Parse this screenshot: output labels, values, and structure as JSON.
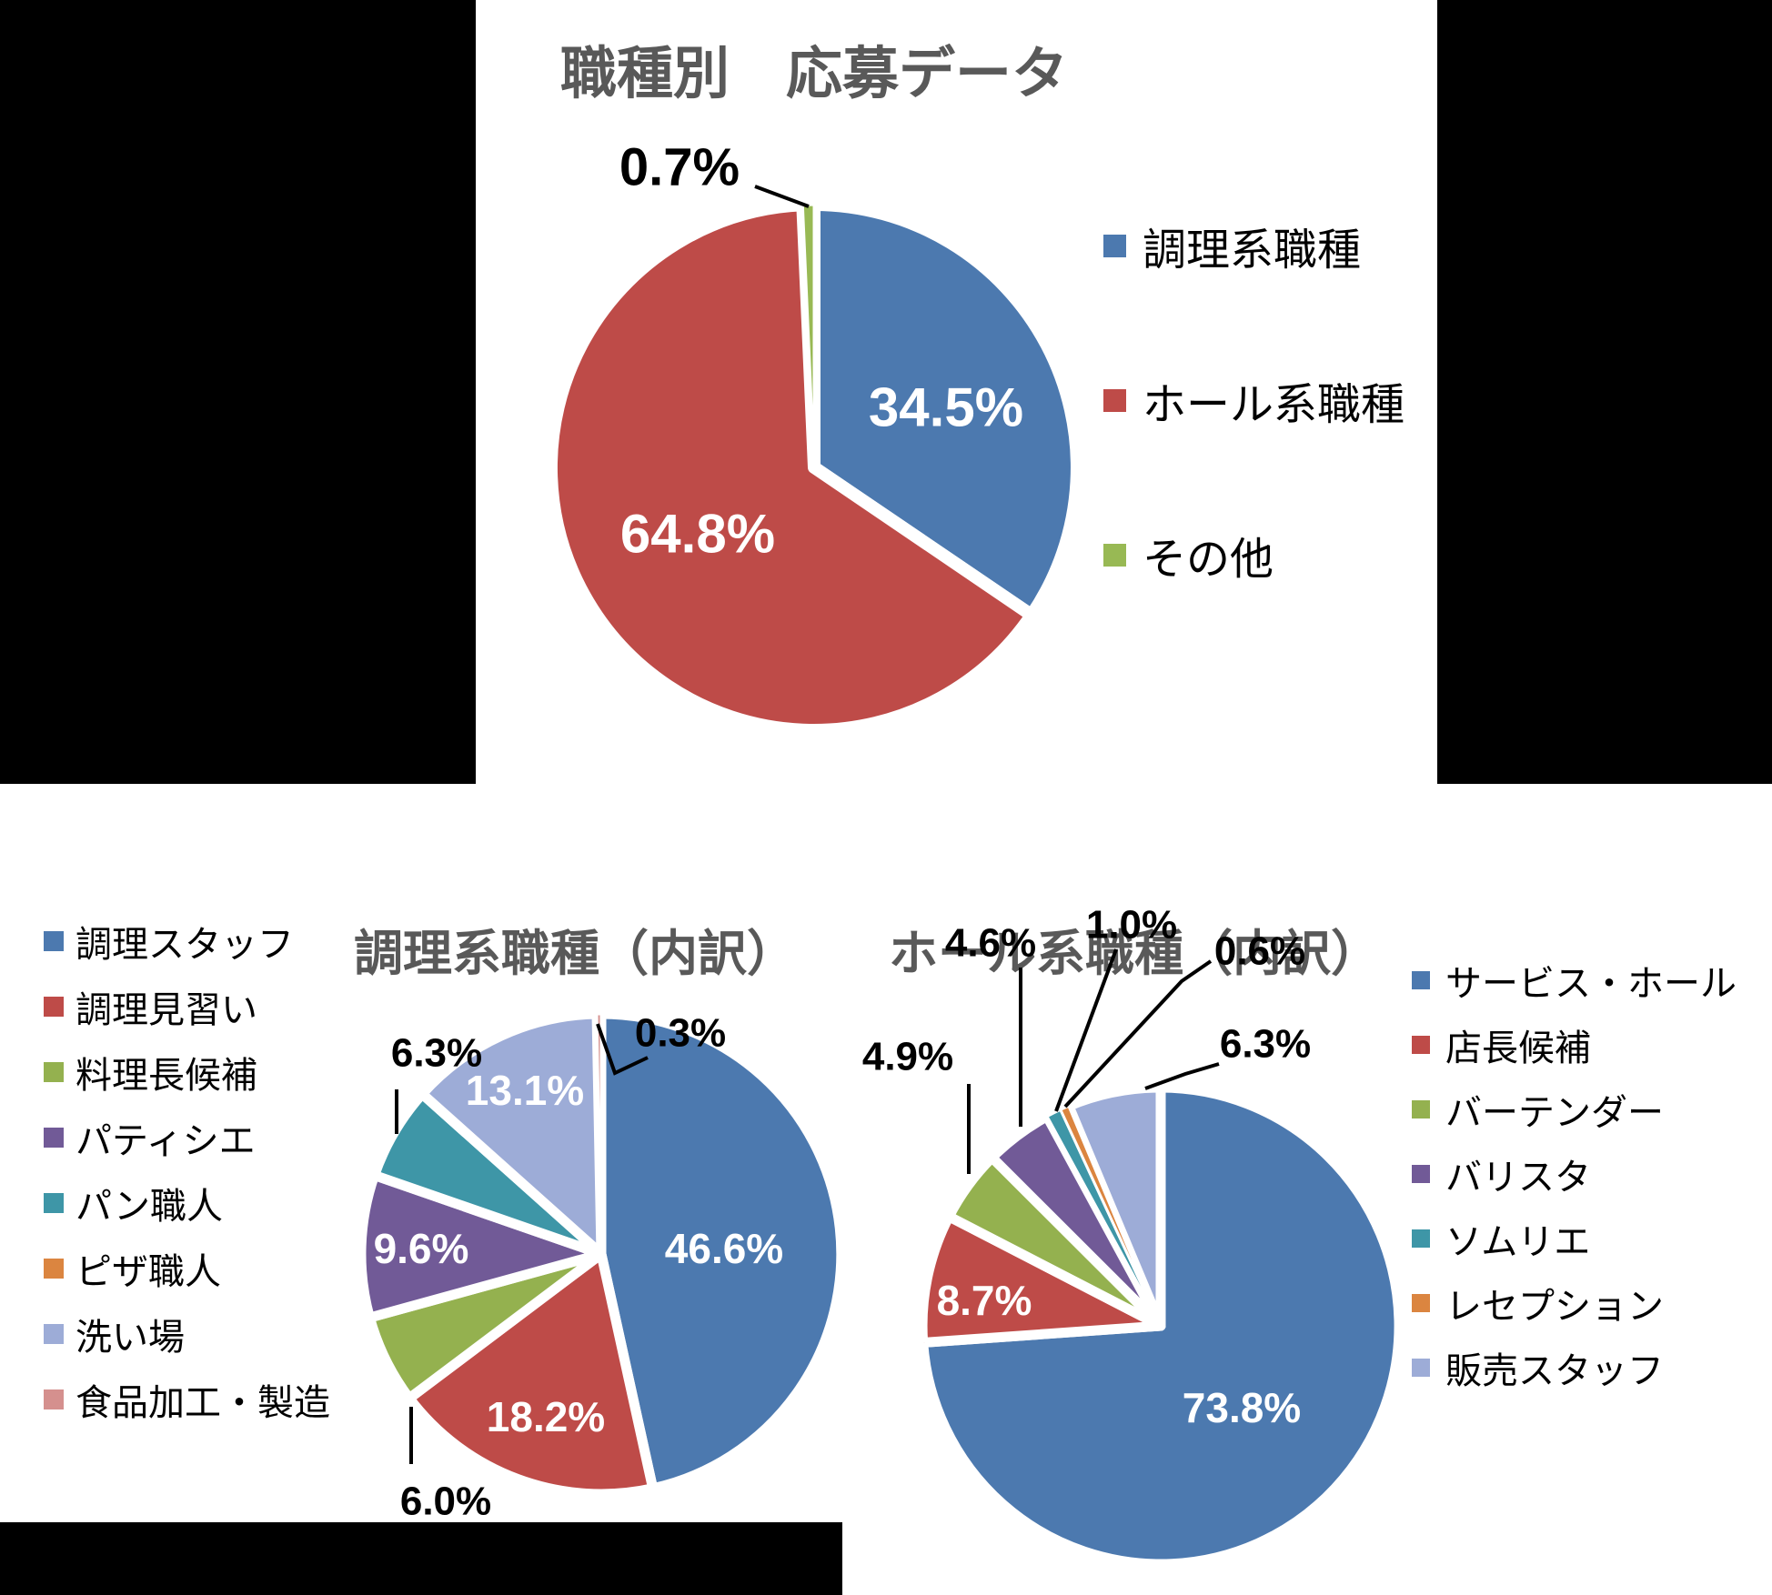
{
  "page": {
    "background_color": "#ffffff",
    "mask_color": "#000000",
    "title_color": "#595959",
    "label_black": "#000000",
    "label_white": "#ffffff"
  },
  "chart_data": [
    {
      "id": "overall",
      "type": "pie",
      "title": "職種別　応募データ",
      "legend_position": "right",
      "slices": [
        {
          "label": "調理系職種",
          "value": 34.5,
          "pct_label": "34.5%",
          "color": "#4C79AF"
        },
        {
          "label": "ホール系職種",
          "value": 64.8,
          "pct_label": "64.8%",
          "color": "#BE4B48"
        },
        {
          "label": "その他",
          "value": 0.7,
          "pct_label": "0.7%",
          "color": "#98B954"
        }
      ]
    },
    {
      "id": "cooking",
      "type": "pie",
      "title": "調理系職種（内訳）",
      "legend_position": "left",
      "slices": [
        {
          "label": "調理スタッフ",
          "value": 46.6,
          "pct_label": "46.6%",
          "color": "#4C79AF"
        },
        {
          "label": "調理見習い",
          "value": 18.2,
          "pct_label": "18.2%",
          "color": "#BE4B48"
        },
        {
          "label": "料理長候補",
          "value": 6.0,
          "pct_label": "6.0%",
          "color": "#94B14F"
        },
        {
          "label": "パティシエ",
          "value": 9.6,
          "pct_label": "9.6%",
          "color": "#715A97"
        },
        {
          "label": "パン職人",
          "value": 6.3,
          "pct_label": "6.3%",
          "color": "#3E96A7"
        },
        {
          "label": "ピザ職人",
          "value": 0.0,
          "pct_label": "",
          "color": "#DB8540"
        },
        {
          "label": "洗い場",
          "value": 13.1,
          "pct_label": "13.1%",
          "color": "#9DACD7"
        },
        {
          "label": "食品加工・製造",
          "value": 0.3,
          "pct_label": "0.3%",
          "color": "#D5908E"
        }
      ]
    },
    {
      "id": "hall",
      "type": "pie",
      "title": "ホール系職種（内訳）",
      "legend_position": "right",
      "slices": [
        {
          "label": "サービス・ホール",
          "value": 73.8,
          "pct_label": "73.8%",
          "color": "#4C79AF"
        },
        {
          "label": "店長候補",
          "value": 8.7,
          "pct_label": "8.7%",
          "color": "#BE4B48"
        },
        {
          "label": "バーテンダー",
          "value": 4.9,
          "pct_label": "4.9%",
          "color": "#94B14F"
        },
        {
          "label": "バリスタ",
          "value": 4.6,
          "pct_label": "4.6%",
          "color": "#715A97"
        },
        {
          "label": "ソムリエ",
          "value": 1.0,
          "pct_label": "1.0%",
          "color": "#3E96A7"
        },
        {
          "label": "レセプション",
          "value": 0.6,
          "pct_label": "0.6%",
          "color": "#DB8540"
        },
        {
          "label": "販売スタッフ",
          "value": 6.3,
          "pct_label": "6.3%",
          "color": "#9DACD7"
        }
      ]
    }
  ]
}
